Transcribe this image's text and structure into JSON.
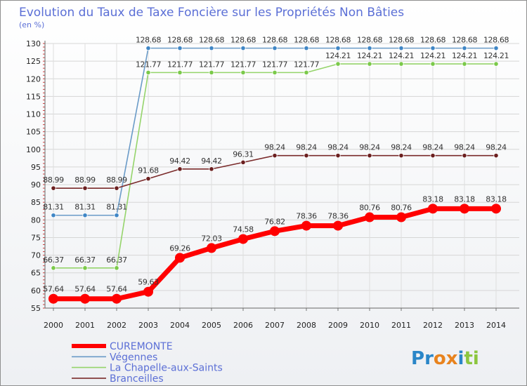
{
  "chart_data": {
    "type": "line",
    "title": "Evolution du Taux de Taxe Foncière sur les Propriétés Non Bâties",
    "unit_label": "(en %)",
    "xlabel": "",
    "ylabel": "(en %)",
    "ylim": [
      55,
      130
    ],
    "yticks": [
      55,
      60,
      65,
      70,
      75,
      80,
      85,
      90,
      95,
      100,
      105,
      110,
      115,
      120,
      125,
      130
    ],
    "x": [
      "2000",
      "2001",
      "2002",
      "2003",
      "2004",
      "2005",
      "2006",
      "2007",
      "2008",
      "2009",
      "2010",
      "2011",
      "2012",
      "2013",
      "2014"
    ],
    "grid": true,
    "legend_position": "bottom-left",
    "series": [
      {
        "name": "Végennes",
        "color": "#6a9bc8",
        "marker_color": "#3f86c6",
        "x": [
          "2000",
          "2001",
          "2002",
          "2003",
          "2004",
          "2005",
          "2006",
          "2007",
          "2008",
          "2009",
          "2010",
          "2011",
          "2012",
          "2013",
          "2014"
        ],
        "values": [
          81.31,
          81.31,
          81.31,
          128.68,
          128.68,
          128.68,
          128.68,
          128.68,
          128.68,
          128.68,
          128.68,
          128.68,
          128.68,
          128.68,
          128.68
        ],
        "labels": [
          "81.31",
          "81.31",
          "81.31",
          "128.68",
          "128.68",
          "128.68",
          "128.68",
          "128.68",
          "128.68",
          "128.68",
          "128.68",
          "128.68",
          "128.68",
          "128.68",
          "128.68"
        ]
      },
      {
        "name": "La Chapelle-aux-Saints",
        "color": "#95d46b",
        "marker_color": "#7bc94a",
        "x": [
          "2000",
          "2001",
          "2002",
          "2003",
          "2004",
          "2005",
          "2006",
          "2007",
          "2008",
          "2009",
          "2010",
          "2011",
          "2012",
          "2013",
          "2014"
        ],
        "values": [
          66.37,
          66.37,
          66.37,
          121.77,
          121.77,
          121.77,
          121.77,
          121.77,
          121.77,
          124.21,
          124.21,
          124.21,
          124.21,
          124.21,
          124.21
        ],
        "labels": [
          "66.37",
          "66.37",
          "66.37",
          "121.77",
          "121.77",
          "121.77",
          "121.77",
          "121.77",
          "121.77",
          "124.21",
          "124.21",
          "124.21",
          "124.21",
          "124.21",
          "124.21"
        ]
      },
      {
        "name": "Branceilles",
        "color": "#7a2a2a",
        "marker_color": "#6b1f1f",
        "x": [
          "2000",
          "2001",
          "2002",
          "2003",
          "2004",
          "2005",
          "2006",
          "2007",
          "2008",
          "2009",
          "2010",
          "2011",
          "2012",
          "2013",
          "2014"
        ],
        "values": [
          88.99,
          88.99,
          88.99,
          91.68,
          94.42,
          94.42,
          96.31,
          98.24,
          98.24,
          98.24,
          98.24,
          98.24,
          98.24,
          98.24,
          98.24
        ],
        "labels": [
          "88.99",
          "88.99",
          "88.99",
          "91.68",
          "94.42",
          "94.42",
          "96.31",
          "98.24",
          "98.24",
          "98.24",
          "98.24",
          "98.24",
          "98.24",
          "98.24",
          "98.24"
        ]
      },
      {
        "name": "CUREMONTE",
        "color": "#ff0000",
        "marker_color": "#ff0000",
        "x": [
          "2000",
          "2001",
          "2002",
          "2003",
          "2004",
          "2005",
          "2006",
          "2007",
          "2008",
          "2009",
          "2010",
          "2011",
          "2012",
          "2013",
          "2014"
        ],
        "values": [
          57.64,
          57.64,
          57.64,
          59.63,
          69.26,
          72.03,
          74.58,
          76.82,
          78.36,
          78.36,
          80.76,
          80.76,
          83.18,
          83.18,
          83.18
        ],
        "labels": [
          "57.64",
          "57.64",
          "57.64",
          "59.63",
          "69.26",
          "72.03",
          "74.58",
          "76.82",
          "78.36",
          "78.36",
          "80.76",
          "80.76",
          "83.18",
          "83.18",
          "83.18"
        ]
      }
    ],
    "legend": [
      "CUREMONTE",
      "Végennes",
      "La Chapelle-aux-Saints",
      "Branceilles"
    ]
  },
  "branding": {
    "logo_text": "Proxiti",
    "logo_letters": [
      "P",
      "r",
      "o",
      "x",
      "i",
      "t",
      "i"
    ],
    "logo_colors": [
      "#2a86c8",
      "#2a86c8",
      "#e8831e",
      "#e8831e",
      "#2a86c8",
      "#8cc63f",
      "#8cc63f"
    ]
  }
}
